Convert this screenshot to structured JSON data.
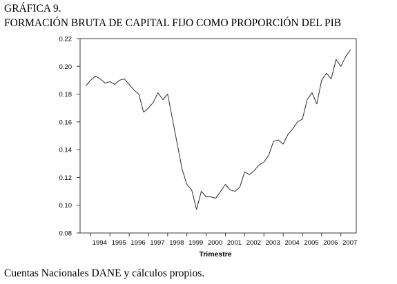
{
  "figure": {
    "number": "GRÁFICA 9.",
    "title": "FORMACIÓN BRUTA DE CAPITAL FIJO COMO PROPORCIÓN DEL PIB",
    "source": "Cuentas Nacionales DANE y cálculos propios."
  },
  "colors": {
    "line": "#2b2b2b",
    "frame": "#3a3a3a",
    "text": "#000000",
    "background": "#ffffff"
  },
  "chart_data": {
    "type": "line",
    "title": "",
    "xlabel": "Trimestre",
    "ylabel": "",
    "ylim": [
      0.08,
      0.22
    ],
    "xlim": [
      1993.45,
      2007.8
    ],
    "grid": false,
    "legend": "none",
    "x_ticks": [
      {
        "value": 1994,
        "label": "1994"
      },
      {
        "value": 1995,
        "label": "1995"
      },
      {
        "value": 1996,
        "label": "1996"
      },
      {
        "value": 1997,
        "label": "1997"
      },
      {
        "value": 1998,
        "label": "1998"
      },
      {
        "value": 1999,
        "label": "1999"
      },
      {
        "value": 2000,
        "label": "2000"
      },
      {
        "value": 2001,
        "label": "2001"
      },
      {
        "value": 2002,
        "label": "2002"
      },
      {
        "value": 2003,
        "label": "2003"
      },
      {
        "value": 2004,
        "label": "2004"
      },
      {
        "value": 2005,
        "label": "2005"
      },
      {
        "value": 2006,
        "label": "2006"
      },
      {
        "value": 2007,
        "label": "2007"
      }
    ],
    "y_ticks": [
      {
        "value": 0.08,
        "label": "0.08"
      },
      {
        "value": 0.1,
        "label": "0.10"
      },
      {
        "value": 0.12,
        "label": "0.12"
      },
      {
        "value": 0.14,
        "label": "0.14"
      },
      {
        "value": 0.16,
        "label": "0.16"
      },
      {
        "value": 0.18,
        "label": "0.18"
      },
      {
        "value": 0.2,
        "label": "0.20"
      },
      {
        "value": 0.22,
        "label": "0.22"
      }
    ],
    "series": [
      {
        "x": [
          1993.75,
          1994.0,
          1994.25,
          1994.5,
          1994.75,
          1995.0,
          1995.25,
          1995.5,
          1995.75,
          1996.0,
          1996.25,
          1996.5,
          1996.75,
          1997.0,
          1997.25,
          1997.5,
          1997.75,
          1998.0,
          1998.25,
          1998.5,
          1998.75,
          1999.0,
          1999.25,
          1999.5,
          1999.75,
          2000.0,
          2000.25,
          2000.5,
          2000.75,
          2001.0,
          2001.25,
          2001.5,
          2001.75,
          2002.0,
          2002.25,
          2002.5,
          2002.75,
          2003.0,
          2003.25,
          2003.5,
          2003.75,
          2004.0,
          2004.25,
          2004.5,
          2004.75,
          2005.0,
          2005.25,
          2005.5,
          2005.75,
          2006.0,
          2006.25,
          2006.5,
          2006.75,
          2007.0,
          2007.25,
          2007.5
        ],
        "y": [
          0.186,
          0.19,
          0.193,
          0.191,
          0.188,
          0.189,
          0.187,
          0.19,
          0.191,
          0.187,
          0.183,
          0.18,
          0.167,
          0.17,
          0.174,
          0.181,
          0.176,
          0.18,
          0.162,
          0.144,
          0.126,
          0.115,
          0.111,
          0.097,
          0.11,
          0.106,
          0.106,
          0.105,
          0.11,
          0.115,
          0.111,
          0.11,
          0.113,
          0.124,
          0.122,
          0.125,
          0.129,
          0.131,
          0.136,
          0.146,
          0.147,
          0.144,
          0.151,
          0.155,
          0.16,
          0.162,
          0.176,
          0.181,
          0.173,
          0.19,
          0.195,
          0.191,
          0.205,
          0.2,
          0.207,
          0.212
        ]
      }
    ]
  }
}
